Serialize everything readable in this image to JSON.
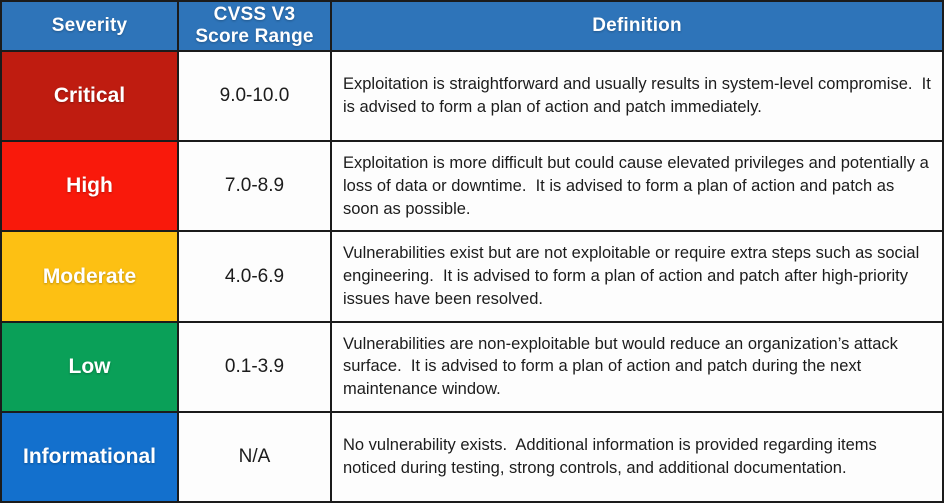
{
  "colors": {
    "header_bg": "#2e74b9",
    "border": "#1b1b1b",
    "header_text": "#ffffff",
    "body_text": "#1c1c1c"
  },
  "headers": [
    "Severity",
    "CVSS V3\nScore Range",
    "Definition"
  ],
  "rows": [
    {
      "severity": "Critical",
      "color": "#bf1c10",
      "score": "9.0-10.0",
      "definition": "Exploitation is straightforward and usually results in system-level compromise.  It is advised to form a plan of action and patch immediately."
    },
    {
      "severity": "High",
      "color": "#f9190b",
      "score": "7.0-8.9",
      "definition": "Exploitation is more difficult but could cause elevated privileges and potentially a loss of data or downtime.  It is advised to form a plan of action and patch as soon as possible."
    },
    {
      "severity": "Moderate",
      "color": "#fdc013",
      "score": "4.0-6.9",
      "definition": "Vulnerabilities exist but are not exploitable or require extra steps such as social engineering.  It is advised to form a plan of action and patch after high-priority issues have been resolved."
    },
    {
      "severity": "Low",
      "color": "#0aa058",
      "score": "0.1-3.9",
      "definition": "Vulnerabilities are non-exploitable but would reduce an organization’s attack surface.  It is advised to form a plan of action and patch during the next maintenance window."
    },
    {
      "severity": "Informational",
      "color": "#1370cd",
      "score": "N/A",
      "definition": "No vulnerability exists.  Additional information is provided regarding items noticed during testing, strong controls, and additional documentation."
    }
  ]
}
